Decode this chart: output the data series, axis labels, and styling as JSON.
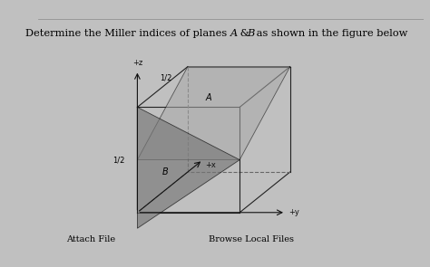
{
  "background_color": "#c0c0c0",
  "title_text": "Determine the Miller indices of planes ",
  "title_A": "A",
  "title_ampersand": " & ",
  "title_B": "B",
  "title_rest": " as shown in the figure below",
  "footer_left": "Attach File",
  "footer_right": "Browse Local Files",
  "figsize": [
    4.74,
    2.95
  ],
  "dpi": 100,
  "box_color": "#222222",
  "plane_A_color": "#aaaaaa",
  "plane_B_color": "#777777",
  "axis_color": "#111111",
  "label_z": "+z",
  "label_y": "+y",
  "label_x": "+x",
  "label_half_left": "1/2",
  "label_half_top": "1/2",
  "label_A": "A",
  "label_B": "B"
}
